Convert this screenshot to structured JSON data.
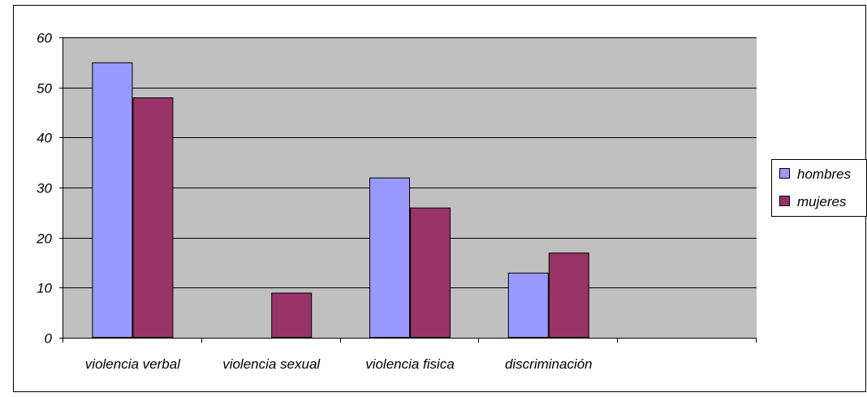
{
  "chart_data": {
    "type": "bar",
    "title": "",
    "xlabel": "",
    "ylabel": "",
    "ylim": [
      0,
      60
    ],
    "yticks": [
      0,
      10,
      20,
      30,
      40,
      50,
      60
    ],
    "ytick_labels": [
      "0",
      "10",
      "20",
      "30",
      "40",
      "50",
      "60"
    ],
    "categories": [
      "violencia verbal",
      "violencia sexual",
      "violencia fisica",
      "discriminación",
      ""
    ],
    "series": [
      {
        "name": "hombres",
        "color": "#9999ff",
        "values": [
          55,
          0,
          32,
          13,
          null
        ]
      },
      {
        "name": "mujeres",
        "color": "#993366",
        "values": [
          48,
          9,
          26,
          17,
          null
        ]
      }
    ],
    "grid": true,
    "plot_background": "#c0c0c0",
    "legend_position": "right"
  }
}
